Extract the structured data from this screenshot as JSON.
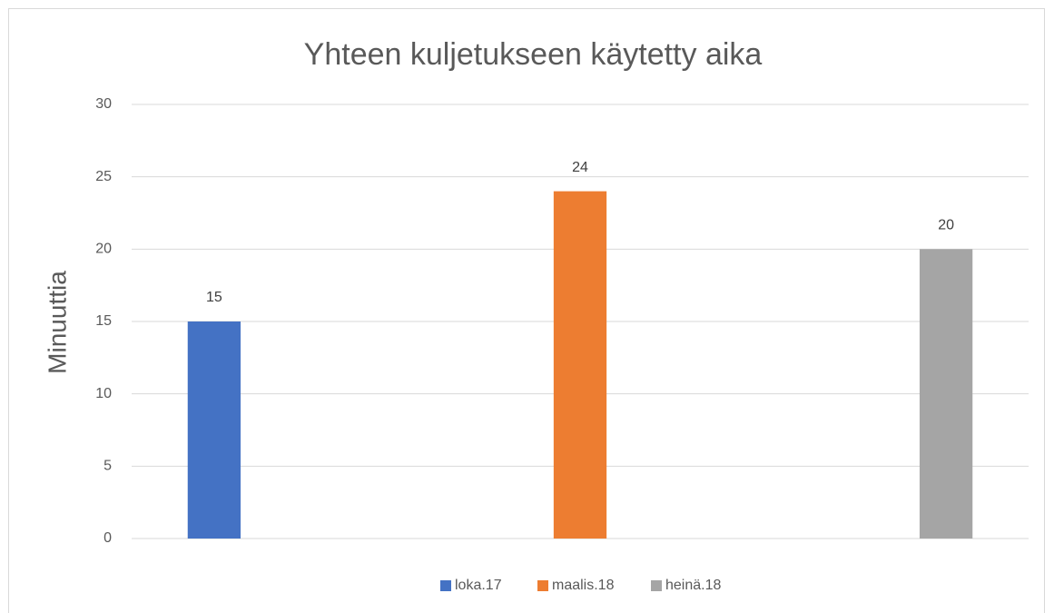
{
  "chart_data": {
    "type": "bar",
    "title": "Yhteen kuljetukseen käytetty aika",
    "y_label": "Minuuttia",
    "categories": [
      null
    ],
    "series": [
      {
        "name": "loka.17",
        "color": "#4472c4",
        "values": [
          15
        ]
      },
      {
        "name": "maalis.18",
        "color": "#ed7d31",
        "values": [
          24
        ]
      },
      {
        "name": "heinä.18",
        "color": "#a5a5a5",
        "values": [
          20
        ]
      }
    ],
    "ylim": [
      0,
      30
    ],
    "yticks": [
      0,
      5,
      10,
      15,
      20,
      25,
      30
    ],
    "grid": true,
    "legend": "bottom"
  }
}
